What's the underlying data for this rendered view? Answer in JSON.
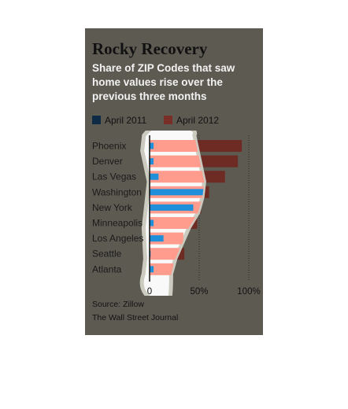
{
  "title": "Rocky Recovery",
  "subtitle": "Share of ZIP Codes that saw home values rise over the previous three months",
  "legend": [
    {
      "label": "April 2011",
      "color": "#0e2a44"
    },
    {
      "label": "April 2012",
      "color": "#7a2e28"
    }
  ],
  "footer": {
    "source": "Source: Zillow",
    "publisher": "The Wall Street Journal"
  },
  "colors": {
    "background": "#5d5a52",
    "bar_2011": "#0e2a44",
    "bar_2012": "#6e2b24",
    "highlight_2011": "#1e8fd8",
    "highlight_2012": "#ff9c8e",
    "highlight_shape": "#ffffff"
  },
  "chart_data": {
    "type": "bar",
    "orientation": "horizontal",
    "categories": [
      "Phoenix",
      "Denver",
      "Las Vegas",
      "Washington",
      "New York",
      "Minneapolis",
      "Los Angeles",
      "Seattle",
      "Atlanta"
    ],
    "series": [
      {
        "name": "April 2011",
        "values": [
          4,
          4,
          9,
          55,
          44,
          4,
          14,
          1,
          4
        ]
      },
      {
        "name": "April 2012",
        "values": [
          93,
          89,
          76,
          60,
          52,
          48,
          34,
          35,
          24
        ]
      }
    ],
    "xlim": [
      0,
      100
    ],
    "tick_labels": [
      "0",
      "50%",
      "100%"
    ],
    "grid": true
  }
}
